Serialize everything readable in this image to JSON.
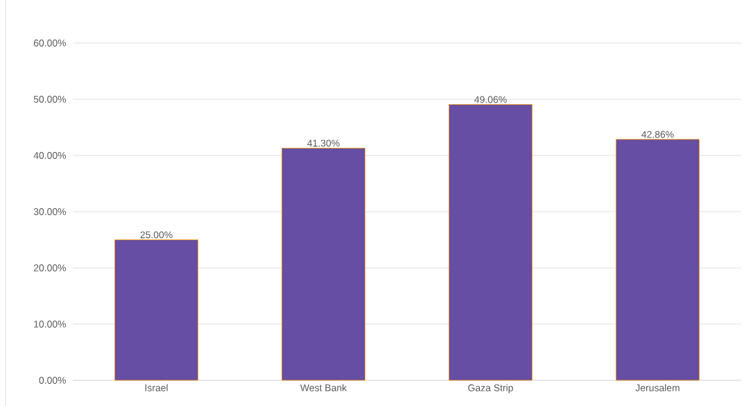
{
  "chart_data": {
    "type": "bar",
    "categories": [
      "Israel",
      "West Bank",
      "Gaza Strip",
      "Jerusalem"
    ],
    "values": [
      25.0,
      41.3,
      49.06,
      42.86
    ],
    "value_labels": [
      "25.00%",
      "41.30%",
      "49.06%",
      "42.86%"
    ],
    "color": "#654ea3",
    "ylim": [
      0,
      60
    ],
    "yticks": [
      {
        "value": 0,
        "label": "0.00%"
      },
      {
        "value": 10,
        "label": "10.00%"
      },
      {
        "value": 20,
        "label": "20.00%"
      },
      {
        "value": 30,
        "label": "30.00%"
      },
      {
        "value": 40,
        "label": "40.00%"
      },
      {
        "value": 50,
        "label": "50.00%"
      },
      {
        "value": 60,
        "label": "60.00%"
      }
    ],
    "grid": "y"
  }
}
